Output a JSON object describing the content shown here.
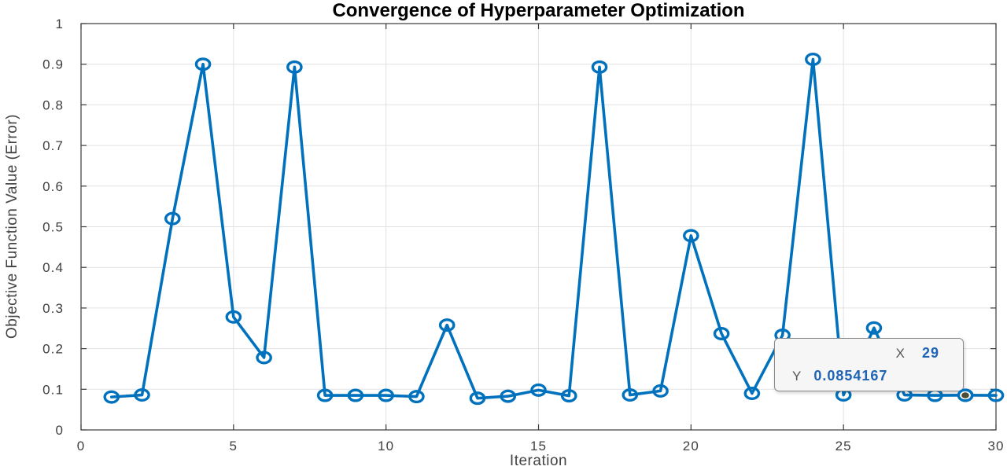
{
  "figure": {
    "title": "Convergence of Hyperparameter Optimization",
    "xlabel": "Iteration",
    "ylabel": "Objective Function Value (Error)"
  },
  "chart_data": {
    "type": "line",
    "title": "Convergence of Hyperparameter Optimization",
    "xlabel": "Iteration",
    "ylabel": "Objective Function Value (Error)",
    "xlim": [
      0,
      30
    ],
    "ylim": [
      0,
      1
    ],
    "x_tick_values": [
      0,
      5,
      10,
      15,
      20,
      25,
      30
    ],
    "x_tick_labels": [
      "0",
      "5",
      "10",
      "15",
      "20",
      "25",
      "30"
    ],
    "y_tick_values": [
      0,
      0.1,
      0.2,
      0.3,
      0.4,
      0.5,
      0.6,
      0.7,
      0.8,
      0.9,
      1
    ],
    "y_tick_labels": [
      "0",
      "0.1",
      "0.2",
      "0.3",
      "0.4",
      "0.5",
      "0.6",
      "0.7",
      "0.8",
      "0.9",
      "1"
    ],
    "grid": true,
    "legend": "none",
    "marker": "open-circle",
    "x": [
      1,
      2,
      3,
      4,
      5,
      6,
      7,
      8,
      9,
      10,
      11,
      12,
      13,
      14,
      15,
      16,
      17,
      18,
      19,
      20,
      21,
      22,
      23,
      24,
      25,
      26,
      27,
      28,
      29,
      30
    ],
    "y": [
      0.081,
      0.086,
      0.52,
      0.9,
      0.278,
      0.178,
      0.893,
      0.085,
      0.085,
      0.085,
      0.082,
      0.258,
      0.078,
      0.083,
      0.098,
      0.084,
      0.893,
      0.086,
      0.096,
      0.478,
      0.237,
      0.09,
      0.233,
      0.912,
      0.086,
      0.251,
      0.086,
      0.085,
      0.0854167,
      0.085
    ],
    "highlighted_point": {
      "x": 29,
      "y": 0.0854167
    }
  },
  "datatip": {
    "x_label": "X",
    "x_value": "29",
    "y_label": "Y",
    "y_value": "0.0854167"
  },
  "colors": {
    "series_line": "#0072BD",
    "datatip_value": "#1e63b5",
    "datatip_label": "#555555",
    "datatip_background": "#f6f6f6",
    "datatip_border": "#8a8a8a",
    "highlight_dot": "#4b4b38",
    "grid_line": "#e2e2e2",
    "axis_line": "#3b3b3b",
    "tick_text": "#404040",
    "title_text": "#000000"
  }
}
